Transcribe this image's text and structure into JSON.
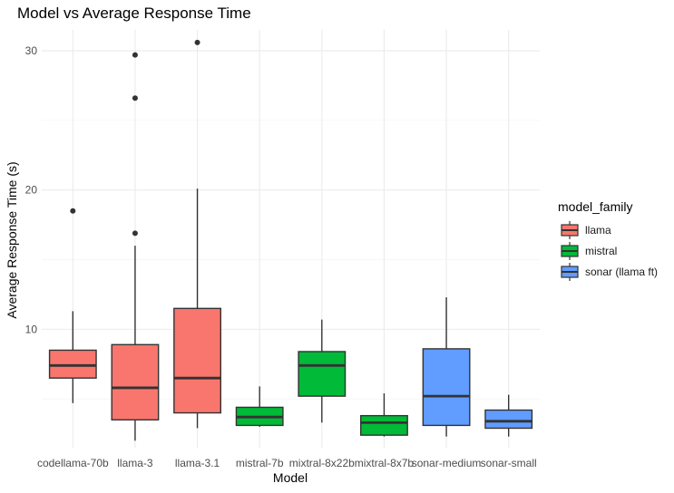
{
  "chart_data": {
    "type": "box",
    "title": "Model vs Average Response Time",
    "xlabel": "Model",
    "ylabel": "Average Response Time (s)",
    "ylim": [
      1.5,
      31.5
    ],
    "yticks": [
      10,
      20,
      30
    ],
    "grid": true,
    "legend": {
      "title": "model_family",
      "position": "right",
      "entries": [
        {
          "label": "llama",
          "color": "#F8766D"
        },
        {
          "label": "mistral",
          "color": "#00BA38"
        },
        {
          "label": "sonar (llama ft)",
          "color": "#619CFF"
        }
      ]
    },
    "categories": [
      "codellama-70b",
      "llama-3",
      "llama-3.1",
      "mistral-7b",
      "mixtral-8x22b",
      "mixtral-8x7b",
      "sonar-medium",
      "sonar-small"
    ],
    "boxes": [
      {
        "category": "codellama-70b",
        "family": "llama",
        "min": 4.7,
        "q1": 6.5,
        "median": 7.4,
        "q3": 8.5,
        "max": 11.3,
        "outliers": [
          18.5
        ]
      },
      {
        "category": "llama-3",
        "family": "llama",
        "min": 2.0,
        "q1": 3.5,
        "median": 5.8,
        "q3": 8.9,
        "max": 16.0,
        "outliers": [
          16.9,
          26.6,
          29.7
        ]
      },
      {
        "category": "llama-3.1",
        "family": "llama",
        "min": 2.9,
        "q1": 4.0,
        "median": 6.5,
        "q3": 11.5,
        "max": 20.1,
        "outliers": [
          30.6
        ]
      },
      {
        "category": "mistral-7b",
        "family": "mistral",
        "min": 3.0,
        "q1": 3.1,
        "median": 3.7,
        "q3": 4.4,
        "max": 5.9,
        "outliers": []
      },
      {
        "category": "mixtral-8x22b",
        "family": "mistral",
        "min": 3.3,
        "q1": 5.2,
        "median": 7.4,
        "q3": 8.4,
        "max": 10.7,
        "outliers": []
      },
      {
        "category": "mixtral-8x7b",
        "family": "mistral",
        "min": 2.3,
        "q1": 2.4,
        "median": 3.3,
        "q3": 3.8,
        "max": 5.4,
        "outliers": []
      },
      {
        "category": "sonar-medium",
        "family": "sonar (llama ft)",
        "min": 2.3,
        "q1": 3.1,
        "median": 5.2,
        "q3": 8.6,
        "max": 12.3,
        "outliers": []
      },
      {
        "category": "sonar-small",
        "family": "sonar (llama ft)",
        "min": 2.3,
        "q1": 2.9,
        "median": 3.4,
        "q3": 4.2,
        "max": 5.3,
        "outliers": []
      }
    ]
  }
}
